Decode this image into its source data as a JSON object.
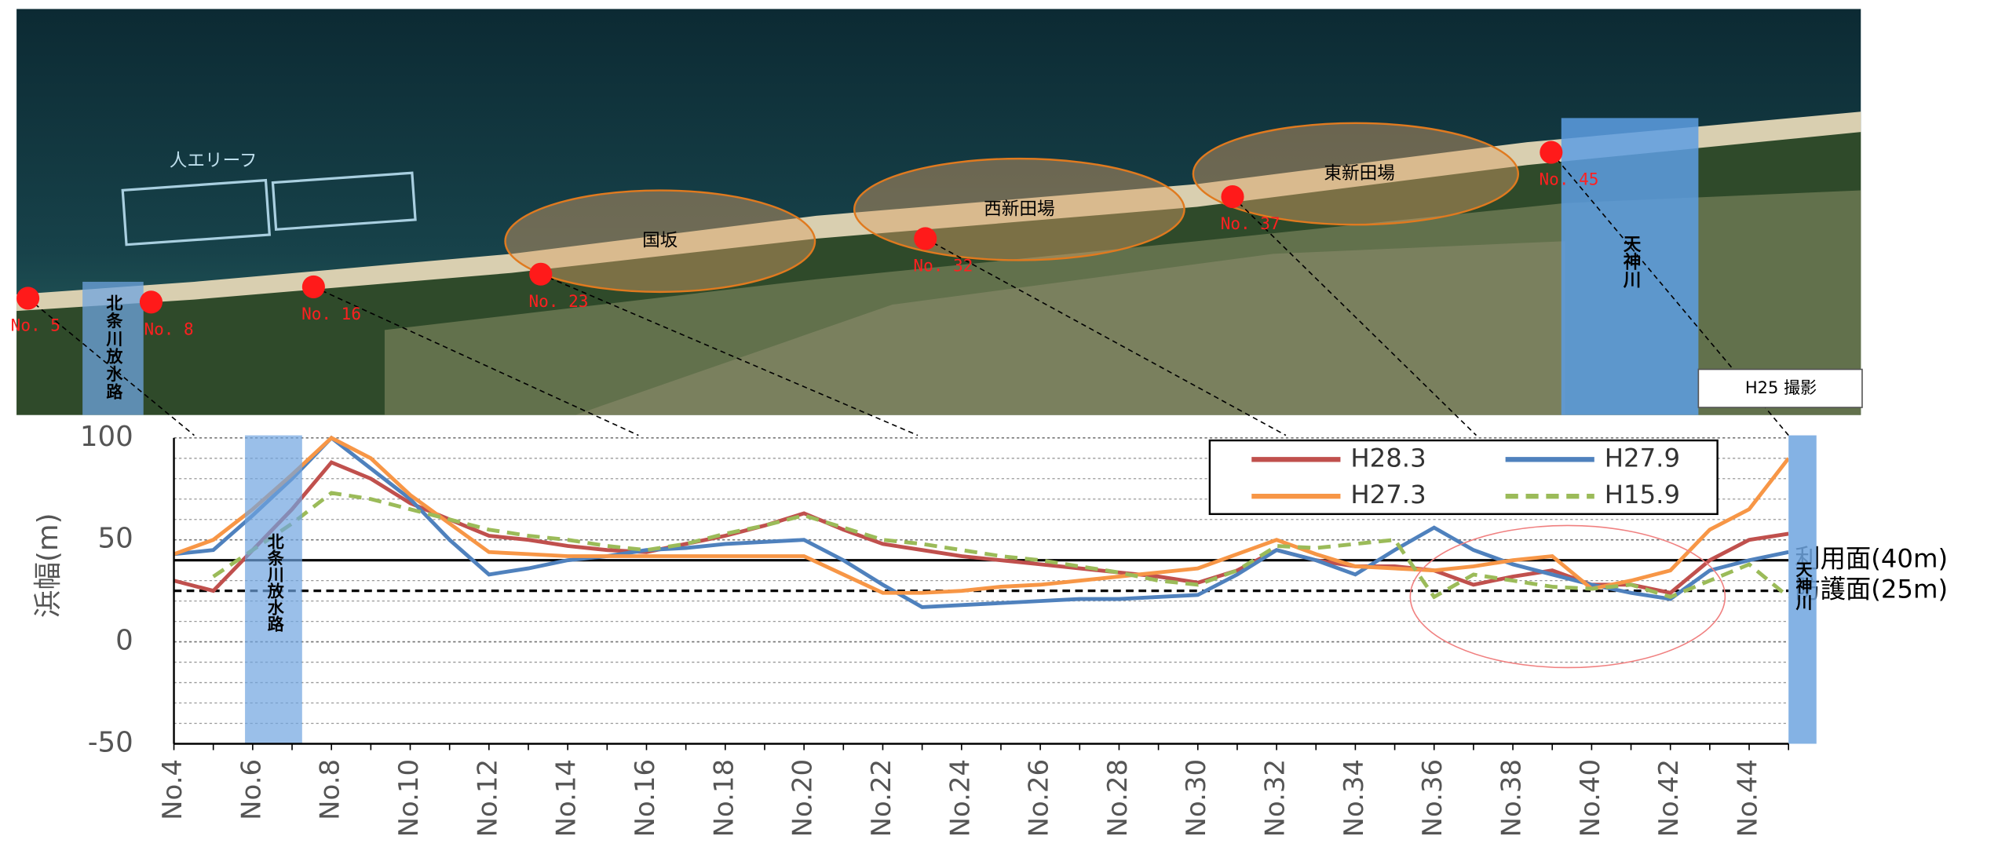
{
  "photo": {
    "reef": "人エリーフ",
    "areas": [
      "国坂",
      "西新田場",
      "東新田場"
    ],
    "points": [
      "No. 5",
      "No. 8",
      "No. 16",
      "No. 23",
      "No. 32",
      "No. 37",
      "No. 45"
    ],
    "rivers": [
      "北条川放水路",
      "天神川"
    ],
    "caption": "H25 撮影"
  },
  "chart_data": {
    "type": "line",
    "y_label": "浜幅(m)",
    "categories": [
      "No.4",
      null,
      "No.6",
      null,
      "No.8",
      null,
      "No.10",
      null,
      "No.12",
      null,
      "No.14",
      null,
      "No.16",
      null,
      "No.18",
      null,
      "No.20",
      null,
      "No.22",
      null,
      "No.24",
      null,
      "No.26",
      null,
      "No.28",
      null,
      "No.30",
      null,
      "No.32",
      null,
      "No.34",
      null,
      "No.36",
      null,
      "No.38",
      null,
      "No.40",
      null,
      "No.42",
      null,
      "No.44",
      null
    ],
    "series": [
      {
        "name": "H28.3",
        "color": "#c0504d",
        "style": "solid",
        "values": [
          30,
          25,
          45,
          65,
          88,
          80,
          68,
          60,
          52,
          50,
          47,
          45,
          44,
          48,
          52,
          57,
          63,
          55,
          48,
          45,
          42,
          40,
          38,
          36,
          34,
          32,
          29,
          35,
          45,
          40,
          37,
          37,
          35,
          28,
          32,
          35,
          28,
          28,
          24,
          40,
          50,
          53
        ]
      },
      {
        "name": "H27.9",
        "color": "#4f81bd",
        "style": "solid",
        "values": [
          43,
          45,
          62,
          80,
          100,
          85,
          70,
          50,
          33,
          36,
          40,
          42,
          45,
          46,
          48,
          49,
          50,
          40,
          28,
          17,
          18,
          19,
          20,
          21,
          21,
          22,
          23,
          33,
          45,
          40,
          33,
          45,
          56,
          45,
          38,
          33,
          28,
          24,
          21,
          35,
          40,
          44
        ]
      },
      {
        "name": "H27.3",
        "color": "#f79646",
        "style": "solid",
        "values": [
          43,
          50,
          65,
          82,
          100,
          90,
          72,
          58,
          44,
          43,
          42,
          42,
          42,
          42,
          42,
          42,
          42,
          33,
          24,
          24,
          25,
          27,
          28,
          30,
          32,
          34,
          36,
          43,
          50,
          43,
          37,
          36,
          35,
          37,
          40,
          42,
          26,
          30,
          35,
          55,
          65,
          90
        ]
      },
      {
        "name": "H15.9",
        "color": "#9bbb59",
        "style": "dashed",
        "values": [
          null,
          32,
          45,
          58,
          73,
          70,
          65,
          60,
          55,
          52,
          50,
          47,
          45,
          48,
          53,
          57,
          62,
          56,
          50,
          48,
          45,
          42,
          40,
          37,
          34,
          30,
          28,
          35,
          47,
          46,
          48,
          50,
          22,
          33,
          30,
          27,
          26,
          28,
          22,
          30,
          38,
          22
        ]
      }
    ],
    "ylim": [
      -50,
      100
    ],
    "yticks": [
      -50,
      0,
      50,
      100
    ],
    "grid": true,
    "legend": "upper right",
    "reference_lines": [
      {
        "value": 40,
        "label": "利用面(40m)",
        "style": "solid"
      },
      {
        "value": 25,
        "label": "防護面(25m)",
        "style": "dashed"
      }
    ],
    "annotations": [
      "北条川放水路",
      "天神川"
    ]
  }
}
